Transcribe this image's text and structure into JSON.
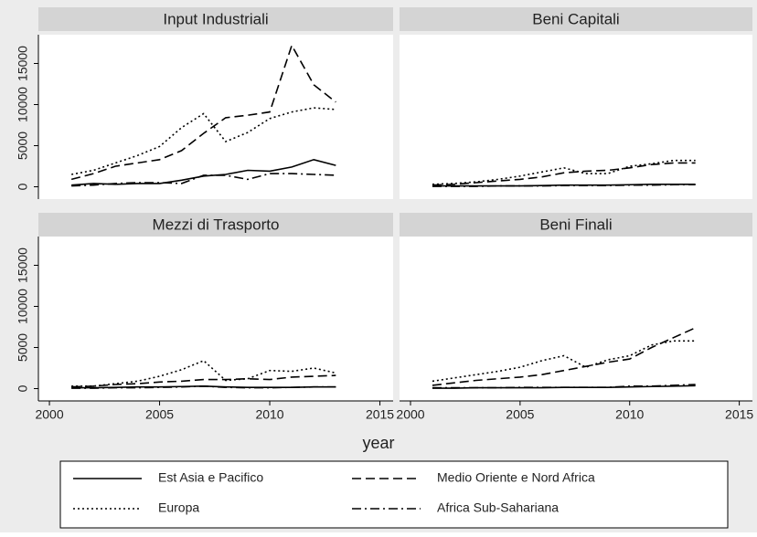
{
  "chart_data": {
    "type": "line",
    "x_label": "year",
    "xlim": [
      1999.5,
      2015.6
    ],
    "xticks": [
      2000,
      2005,
      2010,
      2015
    ],
    "ylim": [
      -1500,
      18500
    ],
    "yticks": [
      0,
      5000,
      10000,
      15000
    ],
    "grid": false,
    "x": [
      2001,
      2002,
      2003,
      2004,
      2005,
      2006,
      2007,
      2008,
      2009,
      2010,
      2011,
      2012,
      2013
    ],
    "series": [
      {
        "name": "Est Asia e Pacifico",
        "color": "#000000",
        "dash": "solid"
      },
      {
        "name": "Medio Oriente e Nord Africa",
        "color": "#000000",
        "dash": "dashed"
      },
      {
        "name": "Europa",
        "color": "#000000",
        "dash": "dotted"
      },
      {
        "name": "Africa Sub-Sahariana",
        "color": "#000000",
        "dash": "dashdot"
      }
    ],
    "panels": [
      {
        "title": "Input Industriali",
        "values": [
          [
            200,
            400,
            300,
            400,
            400,
            800,
            1300,
            1500,
            2000,
            1900,
            2400,
            3300,
            2600
          ],
          [
            900,
            1600,
            2500,
            2900,
            3300,
            4400,
            6500,
            8400,
            8700,
            9100,
            17200,
            12400,
            10300
          ],
          [
            1500,
            2000,
            2900,
            3800,
            4900,
            7200,
            8900,
            5500,
            6600,
            8300,
            9100,
            9600,
            9400
          ],
          [
            100,
            200,
            400,
            500,
            500,
            400,
            1400,
            1400,
            900,
            1600,
            1600,
            1500,
            1400
          ]
        ]
      },
      {
        "title": "Beni Capitali",
        "values": [
          [
            100,
            100,
            100,
            100,
            100,
            150,
            200,
            200,
            200,
            250,
            300,
            300,
            300
          ],
          [
            200,
            300,
            500,
            700,
            900,
            1200,
            1700,
            1900,
            2000,
            2300,
            2700,
            2900,
            2900
          ],
          [
            300,
            400,
            600,
            900,
            1300,
            1800,
            2300,
            1600,
            1600,
            2500,
            2800,
            3200,
            3200
          ],
          [
            50,
            50,
            50,
            100,
            100,
            100,
            150,
            150,
            150,
            200,
            200,
            250,
            250
          ]
        ]
      },
      {
        "title": "Mezzi di Trasporto",
        "values": [
          [
            100,
            100,
            150,
            200,
            200,
            250,
            300,
            200,
            150,
            150,
            150,
            200,
            200
          ],
          [
            200,
            300,
            500,
            600,
            800,
            900,
            1100,
            1100,
            1200,
            1100,
            1400,
            1500,
            1600
          ],
          [
            300,
            300,
            600,
            900,
            1500,
            2300,
            3400,
            1000,
            1200,
            2200,
            2100,
            2500,
            1900
          ],
          [
            50,
            50,
            100,
            100,
            150,
            200,
            300,
            150,
            100,
            100,
            150,
            200,
            200
          ]
        ]
      },
      {
        "title": "Beni Finali",
        "values": [
          [
            50,
            50,
            100,
            100,
            100,
            100,
            150,
            150,
            150,
            200,
            250,
            300,
            350
          ],
          [
            400,
            700,
            1000,
            1200,
            1400,
            1700,
            2200,
            2700,
            3200,
            3600,
            5000,
            6200,
            7400
          ],
          [
            900,
            1300,
            1700,
            2100,
            2600,
            3400,
            4000,
            2600,
            3500,
            4000,
            5300,
            5800,
            5800
          ],
          [
            100,
            100,
            100,
            100,
            150,
            150,
            150,
            150,
            150,
            300,
            300,
            400,
            500
          ]
        ]
      }
    ]
  }
}
